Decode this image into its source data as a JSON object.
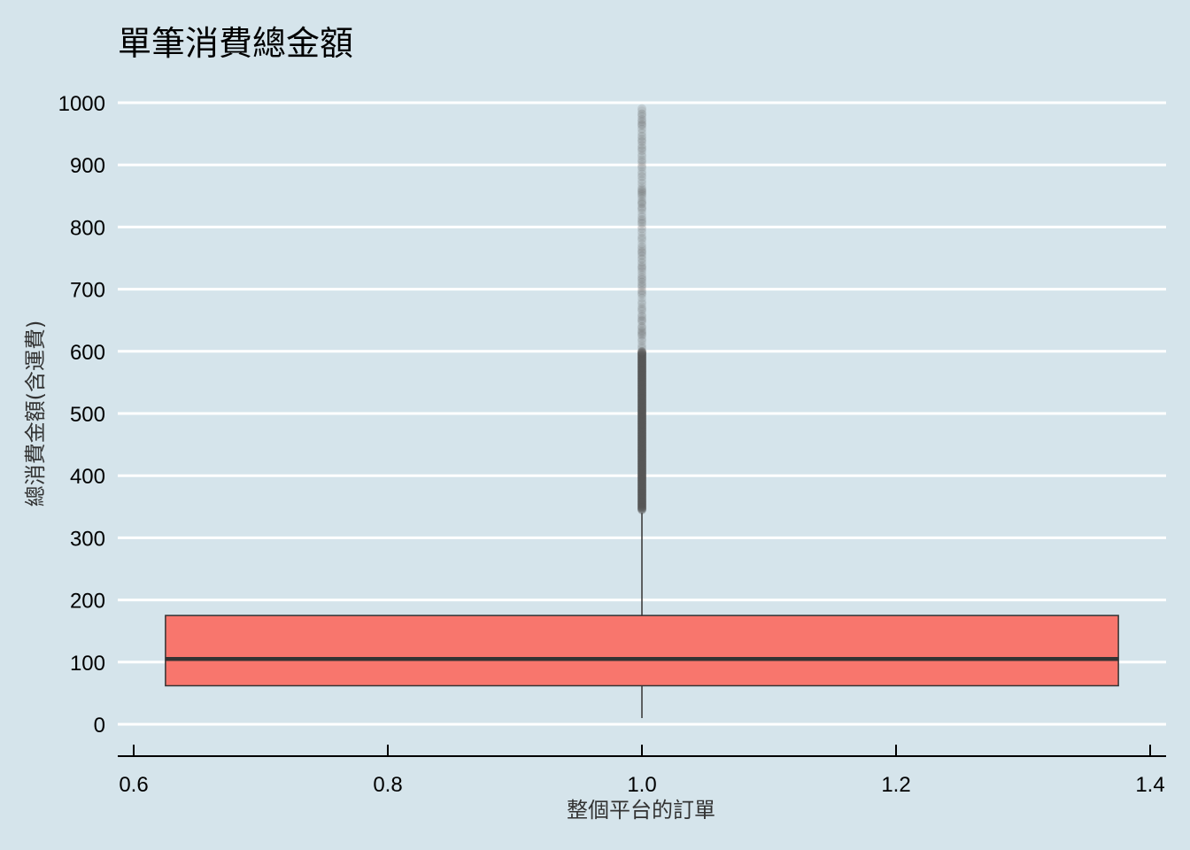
{
  "chart_data": {
    "type": "boxplot",
    "title": "單筆消費總金額",
    "xlabel": "整個平台的訂單",
    "ylabel": "總消費金額(含運費)",
    "xlim": [
      0.6,
      1.4
    ],
    "ylim": [
      0,
      1000
    ],
    "x_ticks": [
      0.6,
      0.8,
      1.0,
      1.2,
      1.4
    ],
    "x_tick_labels": [
      "0.6",
      "0.8",
      "1.0",
      "1.2",
      "1.4"
    ],
    "y_ticks": [
      0,
      100,
      200,
      300,
      400,
      500,
      600,
      700,
      800,
      900,
      1000
    ],
    "y_tick_labels": [
      "0",
      "100",
      "200",
      "300",
      "400",
      "500",
      "600",
      "700",
      "800",
      "900",
      "1000"
    ],
    "grid": "horizontal",
    "box": {
      "x": 1.0,
      "x_range": [
        0.625,
        1.375
      ],
      "whisker_low": 10,
      "q1": 62,
      "median": 105,
      "q3": 175,
      "whisker_high": 340,
      "fill_color": "#f8766d"
    },
    "outlier_range": [
      345,
      995
    ],
    "background_color": "#d5e4eb",
    "grid_color": "#ffffff"
  }
}
